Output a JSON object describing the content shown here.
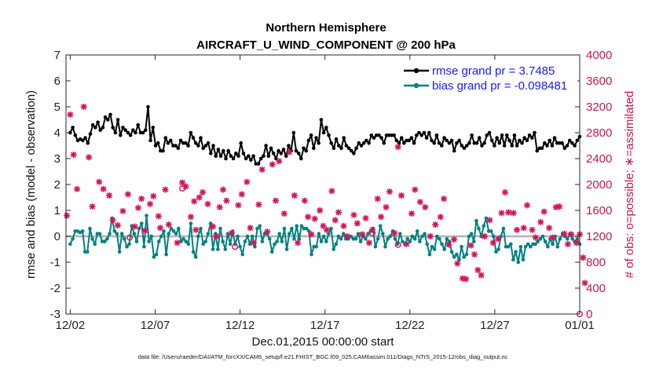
{
  "chart_data": {
    "type": "line",
    "title": "Northern Hemisphere",
    "subtitle": "AIRCRAFT_U_WIND_COMPONENT @ 200 hPa",
    "xlabel": "Dec.01,2015 00:00:00 start",
    "ylabel": "rmse and bias (model - observation)",
    "y2label": "# of obs: o=possible; ∗=assimilated",
    "x_ticks": [
      "12/02",
      "12/07",
      "12/12",
      "12/17",
      "12/22",
      "12/27",
      "01/01"
    ],
    "x_tick_days": [
      1,
      6,
      11,
      16,
      21,
      26,
      31
    ],
    "xlim": [
      0.75,
      31
    ],
    "ylim": [
      -3,
      7
    ],
    "y_ticks": [
      -3,
      -2,
      -1,
      0,
      1,
      2,
      3,
      4,
      5,
      6,
      7
    ],
    "y2lim": [
      0,
      4000
    ],
    "y2_ticks": [
      0,
      400,
      800,
      1200,
      1600,
      2000,
      2400,
      2800,
      3200,
      3600,
      4000
    ],
    "zero_line": 0,
    "grid": false,
    "legend_position": "top-right",
    "legend": [
      "rmse grand pr = 3.7485",
      "bias grand pr = -0.098481"
    ],
    "footer": "data file: /Users/raeder/DAI/ATM_forcXX/CAM6_setup/f.e21.FHIST_BGC.f09_025.CAM6assim.011/Diags_NTrS_2015-12/obs_diag_output.nc",
    "colors": {
      "rmse": "#000000",
      "bias": "#008080",
      "obs": "#d4145a",
      "zero": "#b3b3b3"
    },
    "series": [
      {
        "name": "rmse",
        "axis": "left",
        "values": [
          4.0,
          4.2,
          3.9,
          3.7,
          3.75,
          3.7,
          3.8,
          3.6,
          3.95,
          4.3,
          4.2,
          4.4,
          4.1,
          4.2,
          4.6,
          4.5,
          4.7,
          4.2,
          4.0,
          4.5,
          3.9,
          4.2,
          4.1,
          4.0,
          3.9,
          4.1,
          4.0,
          4.3,
          4.0,
          4.0,
          4.1,
          5.0,
          3.7,
          4.2,
          3.5,
          3.6,
          3.3,
          3.3,
          3.8,
          3.6,
          3.7,
          3.5,
          3.5,
          3.4,
          3.7,
          3.6,
          3.6,
          3.5,
          4.0,
          3.8,
          3.6,
          3.5,
          3.8,
          3.4,
          3.5,
          3.6,
          3.2,
          3.5,
          3.1,
          3.35,
          3.1,
          3.3,
          3.0,
          3.3,
          3.1,
          3.0,
          3.2,
          3.1,
          3.6,
          3.2,
          3.0,
          3.1,
          2.95,
          3.1,
          2.8,
          2.8,
          3.0,
          3.1,
          3.5,
          3.1,
          3.4,
          3.2,
          3.0,
          3.3,
          3.2,
          3.35,
          3.1,
          3.5,
          3.3,
          4.0,
          3.3,
          3.2,
          3.0,
          3.4,
          3.3,
          3.7,
          3.9,
          3.4,
          3.8,
          3.6,
          4.5,
          4.0,
          4.2,
          3.9,
          3.6,
          3.4,
          3.75,
          3.5,
          3.4,
          3.8,
          3.5,
          3.4,
          3.3,
          3.2,
          3.4,
          3.6,
          3.5,
          3.6,
          3.7,
          3.6,
          3.9,
          3.8,
          3.9,
          3.9,
          3.8,
          3.6,
          3.9,
          3.9,
          3.9,
          3.9,
          3.7,
          3.6,
          3.8,
          3.6,
          3.7,
          3.7,
          3.8,
          3.6,
          3.9,
          4.0,
          3.9,
          4.0,
          3.8,
          4.0,
          3.7,
          3.6,
          3.9,
          3.6,
          3.5,
          3.8,
          3.7,
          3.6,
          3.7,
          3.3,
          3.6,
          3.7,
          3.5,
          3.4,
          3.5,
          3.6,
          3.9,
          3.6,
          3.6,
          3.8,
          3.5,
          3.6,
          3.9,
          4.0,
          3.7,
          3.5,
          3.8,
          3.6,
          3.9,
          3.5,
          3.9,
          3.7,
          3.5,
          3.9,
          3.5,
          3.7,
          3.6,
          3.8,
          3.7,
          3.9,
          3.8,
          4.0,
          3.3,
          3.4,
          3.4,
          3.6,
          3.5,
          3.7,
          3.5,
          3.8,
          3.6,
          3.6,
          3.6,
          3.4,
          3.5,
          3.7,
          3.6,
          3.5,
          3.7,
          3.85
        ]
      },
      {
        "name": "bias",
        "axis": "left",
        "values": [
          -0.3,
          -0.1,
          0.2,
          0.2,
          0.15,
          0.2,
          -0.6,
          -0.6,
          0.3,
          -0.1,
          -0.3,
          0.1,
          0.1,
          -0.2,
          -0.2,
          -0.1,
          0.1,
          0.7,
          0.2,
          0.1,
          -0.6,
          0.1,
          -0.1,
          -0.4,
          -0.3,
          0.4,
          0.1,
          -0.2,
          0.3,
          0.5,
          -0.4,
          0.8,
          -0.2,
          0.0,
          -0.8,
          -0.7,
          -0.2,
          0.0,
          0.2,
          -0.7,
          0.1,
          0.3,
          0.2,
          0.1,
          0.3,
          -0.2,
          -0.1,
          -0.2,
          -0.3,
          0.5,
          -0.6,
          -0.8,
          0.0,
          0.3,
          -0.3,
          -0.2,
          0.1,
          0.5,
          -0.5,
          0.1,
          -0.5,
          0.3,
          -0.2,
          -0.5,
          0.1,
          -0.3,
          0.2,
          -0.3,
          0.0,
          -0.4,
          -0.7,
          -0.2,
          0.0,
          -0.3,
          0.0,
          -0.4,
          0.3,
          0.4,
          -0.2,
          0.1,
          0.1,
          -0.1,
          -0.6,
          -0.3,
          -0.2,
          0.1,
          -0.2,
          0.3,
          -0.5,
          0.1,
          0.3,
          -0.1,
          0.4,
          -0.1,
          0.4,
          0.3,
          0.3,
          0.2,
          -0.7,
          -0.4,
          -0.4,
          0.1,
          -0.2,
          0.0,
          -0.2,
          0.1,
          0.3,
          -0.5,
          -0.3,
          0.0,
          -0.1,
          0.1,
          -0.1,
          -0.1,
          0.0,
          -0.1,
          -0.1,
          0.1,
          -0.2,
          0.0,
          -0.1,
          0.1,
          0.2,
          0.3,
          -0.4,
          -0.1,
          0.4,
          0.1,
          -0.4,
          -0.1,
          0.0,
          0.2,
          -0.1,
          -0.3,
          0.1,
          -0.2,
          -0.3,
          -0.1,
          -0.2,
          0.0,
          -0.1,
          0.2,
          -0.2,
          0.0,
          0.1,
          -0.3,
          -0.7,
          -0.4,
          -0.5,
          0.0,
          -0.1,
          -0.3,
          -0.5,
          -0.1,
          -0.2,
          -0.6,
          -0.8,
          -0.7,
          -0.9,
          -0.4,
          -0.8,
          -0.7,
          0.0,
          0.1,
          -0.2,
          0.6,
          0.3,
          0.0,
          0.4,
          0.7,
          0.2,
          0.2,
          0.0,
          -0.6,
          -0.5,
          0.0,
          0.3,
          -0.4,
          -0.4,
          -0.3,
          -0.9,
          -0.6,
          -1.0,
          -0.4,
          -0.9,
          -0.4,
          -0.3,
          -0.4,
          -0.3,
          -0.3,
          -0.2,
          -0.1,
          0.0,
          -0.2,
          -0.4,
          -0.1,
          -0.3,
          0.0,
          -0.4,
          -0.1,
          0.1,
          0.0,
          -0.1,
          0.1,
          -0.1,
          -0.2,
          -0.1,
          -0.3
        ]
      },
      {
        "name": "obs_assimilated",
        "axis": "right",
        "points": [
          [
            0.8,
            1520
          ],
          [
            1.0,
            3080
          ],
          [
            1.2,
            2460
          ],
          [
            1.4,
            1930
          ],
          [
            1.8,
            3200
          ],
          [
            2.1,
            2420
          ],
          [
            2.3,
            1660
          ],
          [
            2.7,
            2040
          ],
          [
            2.95,
            1930
          ],
          [
            3.3,
            1830
          ],
          [
            3.5,
            1450
          ],
          [
            3.8,
            1370
          ],
          [
            4.1,
            1590
          ],
          [
            4.4,
            1850
          ],
          [
            4.8,
            1350
          ],
          [
            5.0,
            1640
          ],
          [
            5.2,
            1780
          ],
          [
            5.4,
            1290
          ],
          [
            5.7,
            1700
          ],
          [
            5.9,
            1820
          ],
          [
            6.2,
            1510
          ],
          [
            6.3,
            1330
          ],
          [
            6.6,
            1920
          ],
          [
            6.8,
            1380
          ],
          [
            7.3,
            1100
          ],
          [
            7.6,
            2030
          ],
          [
            7.8,
            1970
          ],
          [
            8.1,
            1500
          ],
          [
            8.3,
            1740
          ],
          [
            8.4,
            1300
          ],
          [
            8.6,
            1800
          ],
          [
            8.8,
            1880
          ],
          [
            9.1,
            1700
          ],
          [
            9.4,
            1350
          ],
          [
            9.6,
            1200
          ],
          [
            9.8,
            1650
          ],
          [
            10.0,
            1920
          ],
          [
            10.2,
            1750
          ],
          [
            10.5,
            1250
          ],
          [
            10.9,
            1680
          ],
          [
            11.1,
            1850
          ],
          [
            11.4,
            2040
          ],
          [
            11.6,
            1330
          ],
          [
            11.8,
            1100
          ],
          [
            12.1,
            1690
          ],
          [
            12.3,
            2230
          ],
          [
            12.6,
            1270
          ],
          [
            12.9,
            2310
          ],
          [
            13.1,
            1750
          ],
          [
            13.3,
            2360
          ],
          [
            13.6,
            1550
          ],
          [
            13.9,
            2500
          ],
          [
            14.2,
            1830
          ],
          [
            14.4,
            1100
          ],
          [
            14.8,
            1750
          ],
          [
            15.0,
            1500
          ],
          [
            15.2,
            1230
          ],
          [
            15.4,
            1470
          ],
          [
            15.7,
            1600
          ],
          [
            15.9,
            1360
          ],
          [
            16.1,
            1300
          ],
          [
            16.4,
            1900
          ],
          [
            16.6,
            1450
          ],
          [
            16.8,
            1570
          ],
          [
            17.1,
            1360
          ],
          [
            17.3,
            1200
          ],
          [
            17.7,
            1530
          ],
          [
            17.9,
            1400
          ],
          [
            18.2,
            1230
          ],
          [
            18.4,
            1480
          ],
          [
            18.6,
            1100
          ],
          [
            18.8,
            1300
          ],
          [
            19.1,
            1780
          ],
          [
            19.3,
            1500
          ],
          [
            19.6,
            1650
          ],
          [
            19.8,
            1890
          ],
          [
            20.1,
            1250
          ],
          [
            20.3,
            2580
          ],
          [
            20.5,
            1830
          ],
          [
            20.8,
            1080
          ],
          [
            21.1,
            1550
          ],
          [
            21.3,
            1920
          ],
          [
            21.6,
            1730
          ],
          [
            21.9,
            1650
          ],
          [
            22.2,
            1200
          ],
          [
            22.5,
            1380
          ],
          [
            22.8,
            1500
          ],
          [
            23.0,
            1780
          ],
          [
            23.3,
            1070
          ],
          [
            23.6,
            1150
          ],
          [
            23.8,
            780
          ],
          [
            24.1,
            550
          ],
          [
            24.3,
            540
          ],
          [
            24.6,
            1060
          ],
          [
            24.8,
            920
          ],
          [
            25.0,
            680
          ],
          [
            25.2,
            600
          ],
          [
            25.4,
            1200
          ],
          [
            25.7,
            1450
          ],
          [
            25.9,
            1100
          ],
          [
            26.2,
            1160
          ],
          [
            26.4,
            1560
          ],
          [
            26.6,
            1880
          ],
          [
            26.8,
            1570
          ],
          [
            27.1,
            1560
          ],
          [
            27.3,
            1300
          ],
          [
            27.7,
            1330
          ],
          [
            27.9,
            1680
          ],
          [
            28.2,
            1300
          ],
          [
            28.4,
            1180
          ],
          [
            28.7,
            1420
          ],
          [
            28.9,
            1580
          ],
          [
            29.2,
            1330
          ],
          [
            29.4,
            1180
          ],
          [
            29.6,
            1650
          ],
          [
            29.8,
            1660
          ],
          [
            30.1,
            1240
          ],
          [
            30.3,
            1080
          ],
          [
            30.5,
            1230
          ],
          [
            30.8,
            1100
          ],
          [
            31.0,
            1230
          ],
          [
            31.2,
            870
          ],
          [
            31.3,
            480
          ]
        ]
      },
      {
        "name": "obs_possible",
        "axis": "right",
        "points": [
          [
            4.5,
            1180
          ],
          [
            7.6,
            1940
          ],
          [
            10.7,
            1040
          ],
          [
            18.8,
            1250
          ],
          [
            20.3,
            1070
          ],
          [
            31.0,
            0
          ]
        ]
      }
    ]
  }
}
